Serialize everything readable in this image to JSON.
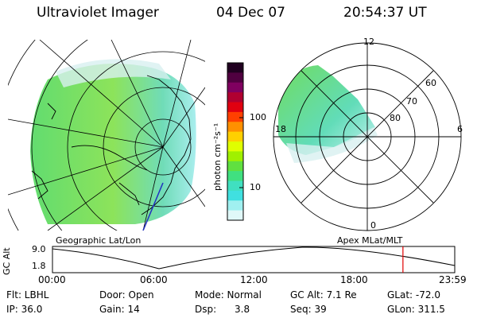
{
  "header": {
    "instrument": "Ultraviolet Imager",
    "date": "04 Dec 07",
    "time": "20:54:37 UT"
  },
  "colorbar": {
    "label": "photon cm⁻²s⁻¹",
    "ticks": [
      "100",
      "10"
    ],
    "colors": [
      "#200020",
      "#500040",
      "#800060",
      "#b00030",
      "#e00010",
      "#ff4000",
      "#ff9000",
      "#ffd000",
      "#e0ff00",
      "#a0f000",
      "#60e040",
      "#40e080",
      "#40e0c0",
      "#40e0e0",
      "#a0f0f0",
      "#e0f8f8"
    ]
  },
  "geo_panel": {
    "label": "Geographic Lat/Lon"
  },
  "apex_panel": {
    "label": "Apex  MLat/MLT",
    "mlt_labels": [
      "12",
      "18",
      "6",
      "0"
    ],
    "lat_labels": [
      "60",
      "70",
      "80"
    ]
  },
  "altitude_plot": {
    "ylabel": "GC Alt",
    "yticks": [
      "9.0",
      "1.8"
    ],
    "xticks": [
      "00:00",
      "06:00",
      "12:00",
      "18:00",
      "23:59"
    ],
    "marker_hour": 20.91,
    "marker_color": "#e00000"
  },
  "footer": {
    "flt": "Flt: LBHL",
    "ip": "IP: 36.0",
    "door": "Door: Open",
    "gain": "Gain: 14",
    "mode": "Mode: Normal",
    "dsp": "Dsp:      3.8",
    "gcalt": "GC Alt: 7.1 Re",
    "seq": "Seq: 39",
    "glat": "GLat: -72.0",
    "glon": "GLon: 311.5"
  }
}
